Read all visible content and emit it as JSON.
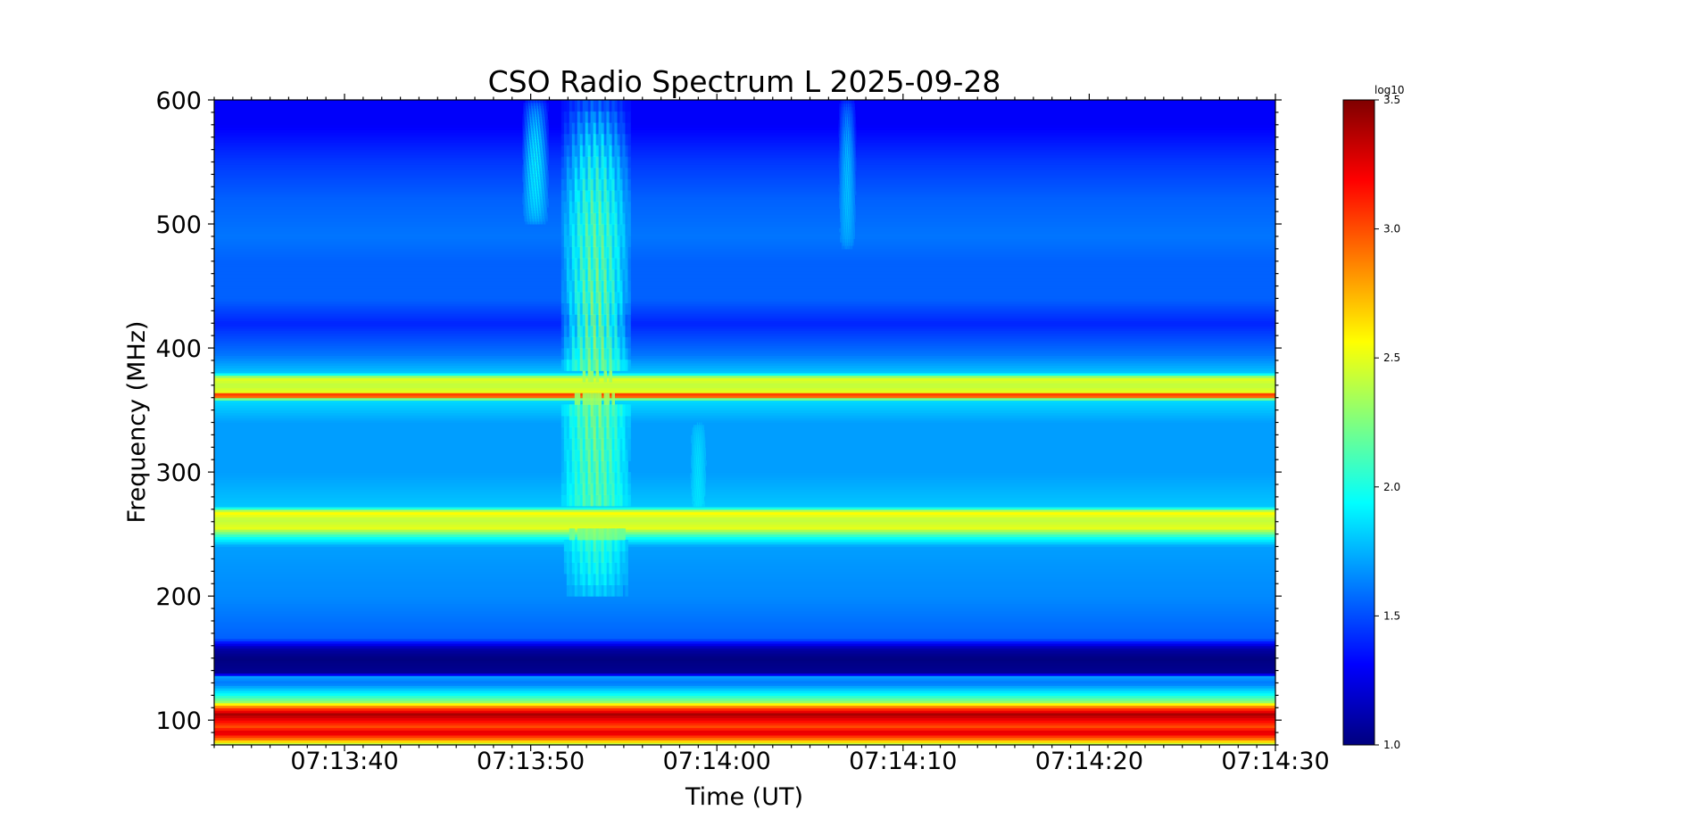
{
  "chart_data": {
    "type": "heatmap",
    "title": "CSO Radio Spectrum L 2025-09-28",
    "xlabel": "Time (UT)",
    "ylabel": "Frequency (MHz)",
    "x_ticks": [
      "07:13:40",
      "07:13:50",
      "07:14:00",
      "07:14:10",
      "07:14:20",
      "07:14:30"
    ],
    "x_tick_seconds": [
      40,
      50,
      60,
      70,
      80,
      90
    ],
    "x_start_label": "07:13:33",
    "xlim_seconds": [
      33,
      90
    ],
    "y_ticks": [
      100,
      200,
      300,
      400,
      500,
      600
    ],
    "ylim": [
      80,
      600
    ],
    "colorbar": {
      "label": "log10",
      "ticks": [
        "1.0",
        "1.5",
        "2.0",
        "2.5",
        "3.0",
        "3.5"
      ],
      "range": [
        1.0,
        3.5
      ],
      "colormap": "jet"
    },
    "background_profile": [
      {
        "f": 80,
        "v": 2.3
      },
      {
        "f": 85,
        "v": 2.9
      },
      {
        "f": 90,
        "v": 3.3
      },
      {
        "f": 95,
        "v": 3.0
      },
      {
        "f": 100,
        "v": 3.2
      },
      {
        "f": 105,
        "v": 3.4
      },
      {
        "f": 110,
        "v": 3.0
      },
      {
        "f": 115,
        "v": 2.3
      },
      {
        "f": 120,
        "v": 2.0
      },
      {
        "f": 125,
        "v": 1.8
      },
      {
        "f": 130,
        "v": 1.6
      },
      {
        "f": 135,
        "v": 1.7
      },
      {
        "f": 138,
        "v": 1.05
      },
      {
        "f": 150,
        "v": 1.0
      },
      {
        "f": 158,
        "v": 1.1
      },
      {
        "f": 162,
        "v": 1.3
      },
      {
        "f": 166,
        "v": 1.55
      },
      {
        "f": 200,
        "v": 1.65
      },
      {
        "f": 240,
        "v": 1.7
      },
      {
        "f": 248,
        "v": 2.0
      },
      {
        "f": 255,
        "v": 2.5
      },
      {
        "f": 262,
        "v": 2.4
      },
      {
        "f": 268,
        "v": 2.6
      },
      {
        "f": 272,
        "v": 1.8
      },
      {
        "f": 300,
        "v": 1.7
      },
      {
        "f": 340,
        "v": 1.7
      },
      {
        "f": 358,
        "v": 1.85
      },
      {
        "f": 362,
        "v": 3.3
      },
      {
        "f": 365,
        "v": 2.5
      },
      {
        "f": 370,
        "v": 2.4
      },
      {
        "f": 376,
        "v": 2.5
      },
      {
        "f": 380,
        "v": 1.8
      },
      {
        "f": 395,
        "v": 1.6
      },
      {
        "f": 420,
        "v": 1.4
      },
      {
        "f": 440,
        "v": 1.55
      },
      {
        "f": 470,
        "v": 1.55
      },
      {
        "f": 490,
        "v": 1.6
      },
      {
        "f": 520,
        "v": 1.55
      },
      {
        "f": 550,
        "v": 1.45
      },
      {
        "f": 580,
        "v": 1.3
      },
      {
        "f": 600,
        "v": 1.3
      }
    ],
    "bursts": [
      {
        "t0": 51.5,
        "t1": 55.5,
        "f0": 200,
        "f1": 600,
        "peak": 2.35
      },
      {
        "t0": 49.5,
        "t1": 51.0,
        "f0": 500,
        "f1": 600,
        "peak": 2.0
      },
      {
        "t0": 58.5,
        "t1": 59.5,
        "f0": 250,
        "f1": 340,
        "peak": 1.9
      },
      {
        "t0": 66.5,
        "t1": 67.5,
        "f0": 480,
        "f1": 600,
        "peak": 1.85
      }
    ]
  }
}
